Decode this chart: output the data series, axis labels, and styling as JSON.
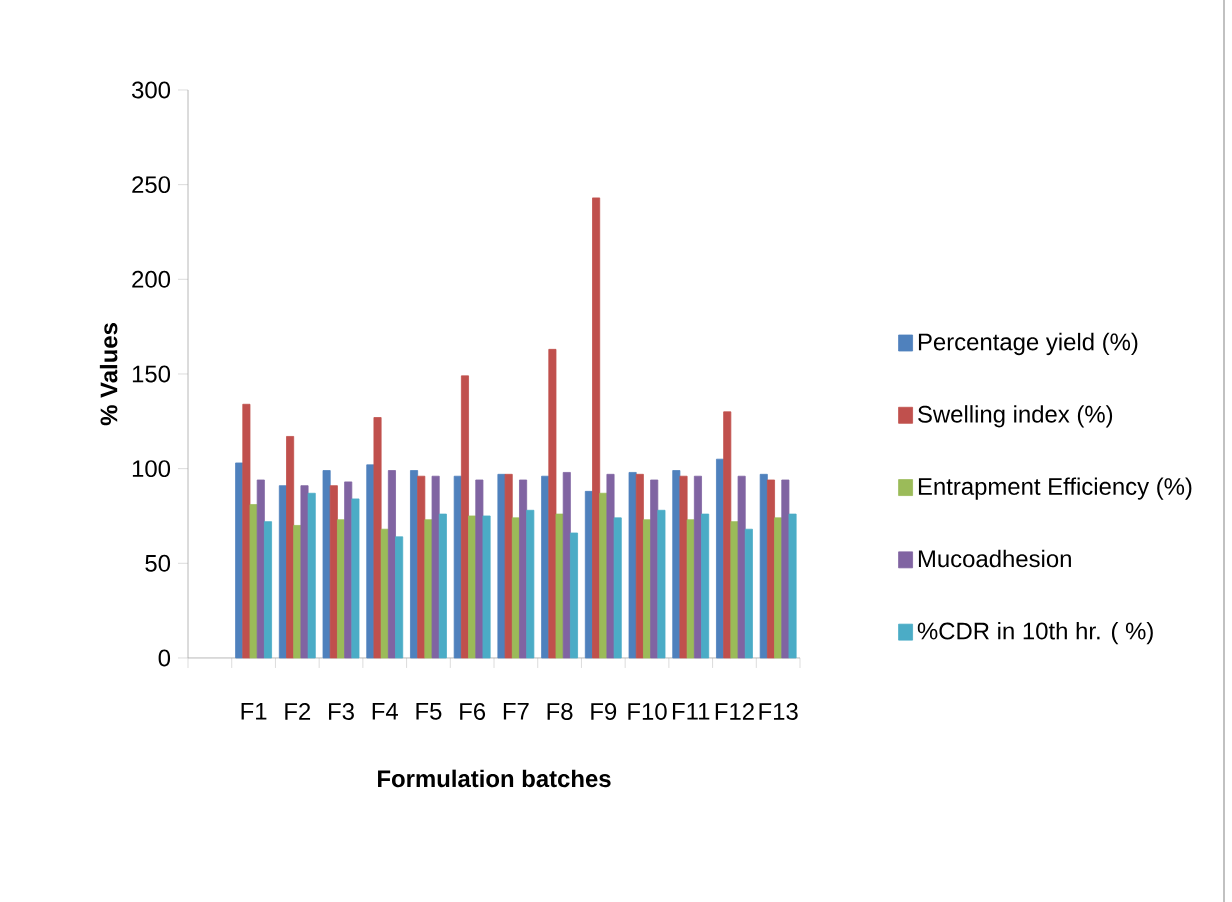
{
  "chart_data": {
    "type": "bar",
    "xlabel": "Formulation batches",
    "ylabel": "% Values",
    "categories": [
      null,
      "F1",
      "F2",
      "F3",
      "F4",
      "F5",
      "F6",
      "F7",
      "F8",
      "F9",
      "F10",
      "F11",
      "F12",
      "F13"
    ],
    "series": [
      {
        "name": "Percentage yield (%)",
        "color": "#4f81bd",
        "values": [
          null,
          103,
          91,
          99,
          102,
          99,
          96,
          97,
          96,
          88,
          98,
          99,
          105,
          97
        ]
      },
      {
        "name": "Swelling index (%)",
        "color": "#c0504d",
        "values": [
          null,
          134,
          117,
          91,
          127,
          96,
          149,
          97,
          163,
          243,
          97,
          96,
          130,
          94
        ]
      },
      {
        "name": "Entrapment  Efficiency (%)",
        "color": "#9bbb59",
        "values": [
          null,
          81,
          70,
          73,
          68,
          73,
          75,
          74,
          76,
          87,
          73,
          73,
          72,
          74
        ]
      },
      {
        "name": "Mucoadhesion",
        "color": "#8064a2",
        "values": [
          null,
          94,
          91,
          93,
          99,
          96,
          94,
          94,
          98,
          97,
          94,
          96,
          96,
          94
        ]
      },
      {
        "name": "%CDR in 10th hr. ( %)",
        "color": "#4bacc6",
        "values": [
          null,
          72,
          87,
          84,
          64,
          76,
          75,
          78,
          66,
          74,
          78,
          76,
          68,
          76
        ]
      }
    ],
    "ylim": [
      0,
      300
    ],
    "yticks": [
      0,
      50,
      100,
      150,
      200,
      250,
      300
    ],
    "grid": false,
    "legend": "right"
  }
}
